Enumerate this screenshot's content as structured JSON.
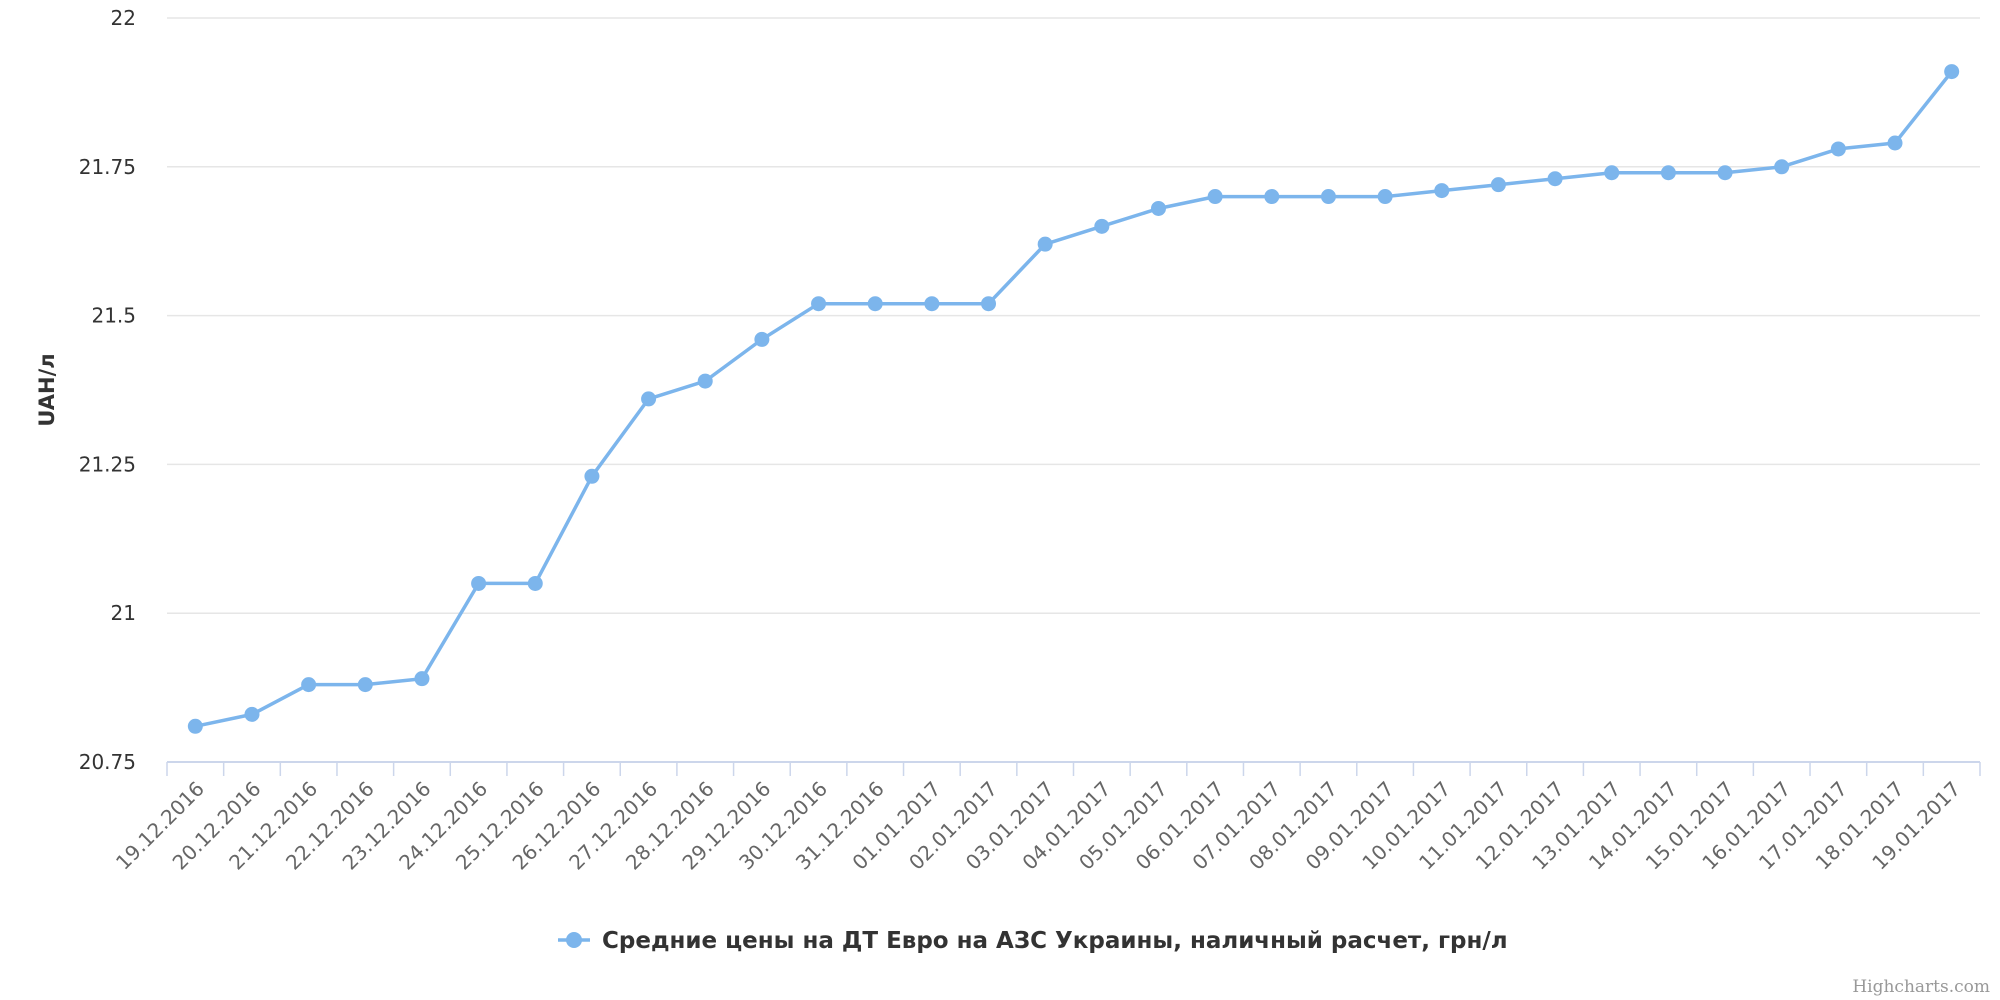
{
  "chart_data": {
    "type": "line",
    "title": "",
    "xlabel": "",
    "ylabel": "UAH/л",
    "ylim": [
      20.75,
      22
    ],
    "yticks": [
      "20.75",
      "21",
      "21.25",
      "21.5",
      "21.75",
      "22"
    ],
    "grid": true,
    "legend_placement": "bottom-center",
    "categories": [
      "19.12.2016",
      "20.12.2016",
      "21.12.2016",
      "22.12.2016",
      "23.12.2016",
      "24.12.2016",
      "25.12.2016",
      "26.12.2016",
      "27.12.2016",
      "28.12.2016",
      "29.12.2016",
      "30.12.2016",
      "31.12.2016",
      "01.01.2017",
      "02.01.2017",
      "03.01.2017",
      "04.01.2017",
      "05.01.2017",
      "06.01.2017",
      "07.01.2017",
      "08.01.2017",
      "09.01.2017",
      "10.01.2017",
      "11.01.2017",
      "12.01.2017",
      "13.01.2017",
      "14.01.2017",
      "15.01.2017",
      "16.01.2017",
      "17.01.2017",
      "18.01.2017",
      "19.01.2017"
    ],
    "series": [
      {
        "name": "Средние цены на ДТ Евро на АЗС Украины, наличный расчет, грн/л",
        "color": "#7cb5ec",
        "values": [
          20.81,
          20.83,
          20.88,
          20.88,
          20.89,
          21.05,
          21.05,
          21.23,
          21.36,
          21.39,
          21.46,
          21.52,
          21.52,
          21.52,
          21.52,
          21.62,
          21.65,
          21.68,
          21.7,
          21.7,
          21.7,
          21.7,
          21.71,
          21.72,
          21.73,
          21.74,
          21.74,
          21.74,
          21.75,
          21.78,
          21.79,
          21.91
        ]
      }
    ]
  },
  "credits": "Highcharts.com"
}
